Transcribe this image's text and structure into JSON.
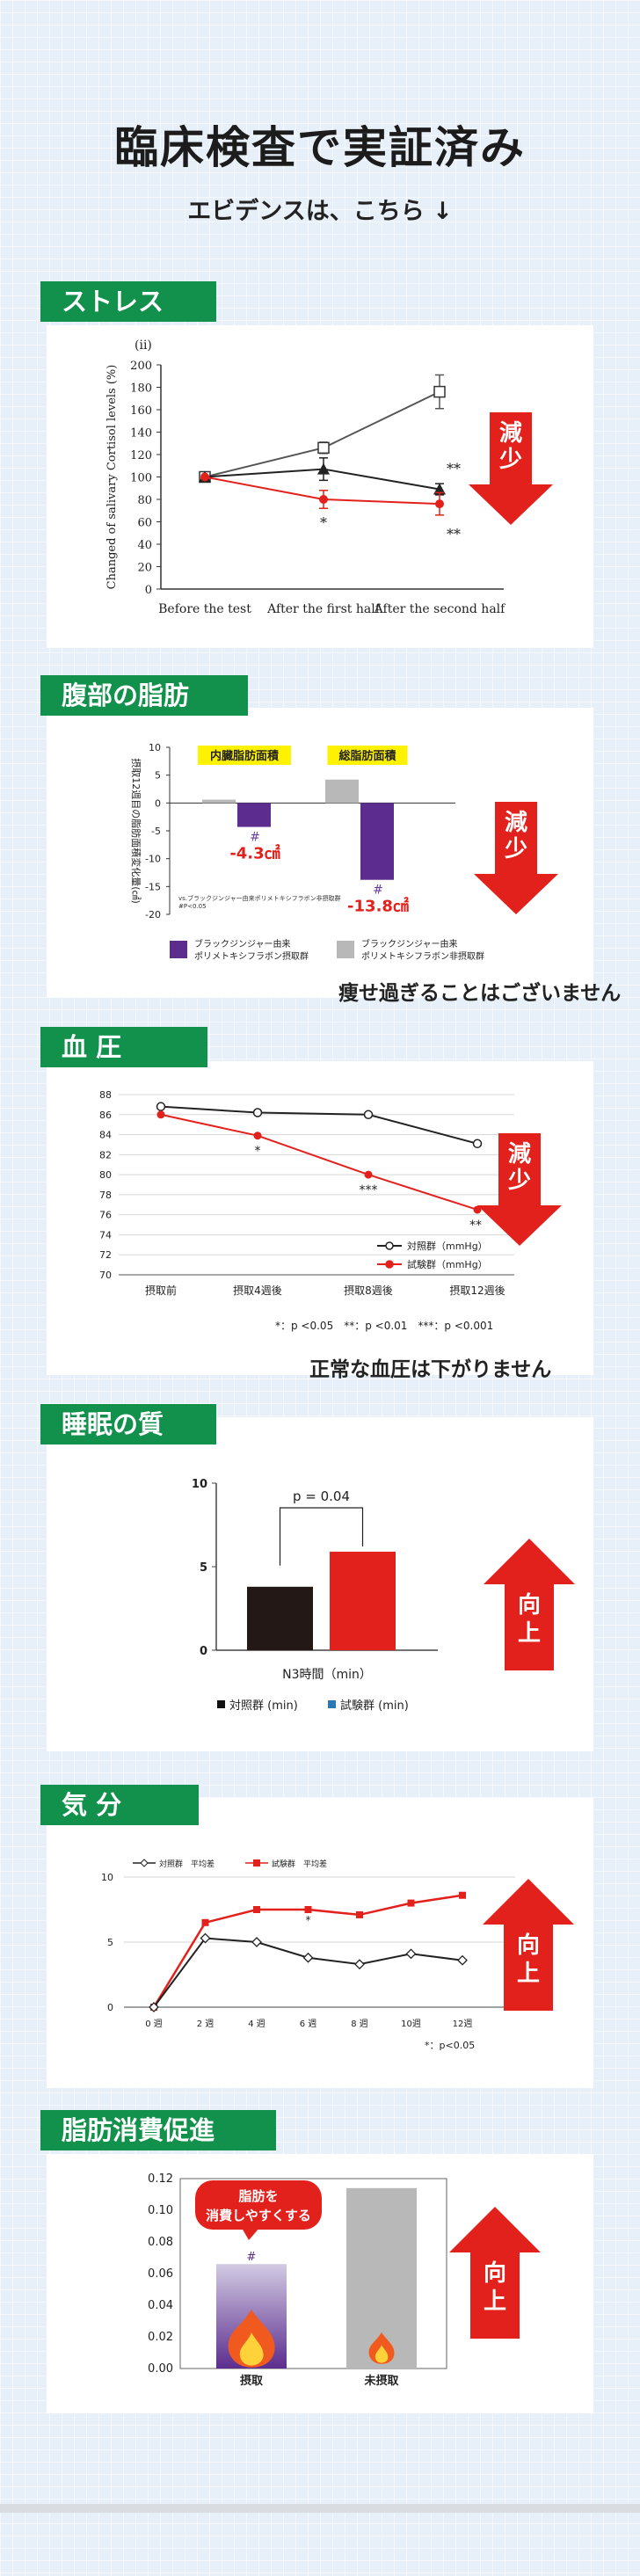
{
  "header": {
    "title": "臨床検査で実証済み",
    "subtitle": "エビデンスは、こちら ↓"
  },
  "sections": {
    "stress": {
      "label": "ストレス",
      "badge": "減少"
    },
    "belly": {
      "label": "腹部の脂肪",
      "badge": "減少",
      "note": "痩せ過ぎることはございません"
    },
    "bp": {
      "label": "血 圧",
      "badge": "減少",
      "note": "正常な血圧は下がりません"
    },
    "sleep": {
      "label": "睡眠の質",
      "badge": "向上"
    },
    "mood": {
      "label": "気 分",
      "badge": "向上"
    },
    "fat": {
      "label": "脂肪消費促進",
      "badge": "向上"
    }
  },
  "colors": {
    "green": "#11914b",
    "red": "#e3211c",
    "purple": "#5c2d8e",
    "gray": "#b8b8b8",
    "black": "#231815"
  },
  "chart_data": [
    {
      "id": "stress",
      "type": "line",
      "panel_label": "(ii)",
      "ylabel": "Changed of salivary Cortisol levels (%)",
      "categories": [
        "Before the test",
        "After the first half",
        "After the second half"
      ],
      "yticks": [
        0,
        20,
        40,
        60,
        80,
        100,
        120,
        140,
        160,
        180,
        200
      ],
      "ylim": [
        0,
        200
      ],
      "series": [
        {
          "marker": "open-square",
          "values": [
            100,
            126,
            176
          ],
          "errors": [
            0,
            5,
            15
          ]
        },
        {
          "marker": "triangle",
          "values": [
            100,
            107,
            89
          ],
          "errors": [
            0,
            10,
            5
          ]
        },
        {
          "marker": "red-circle",
          "values": [
            100,
            80,
            76
          ],
          "errors": [
            0,
            8,
            10
          ]
        }
      ],
      "annotations": [
        {
          "text": "*",
          "x": "After the first half"
        },
        {
          "text": "**",
          "x": "After the second half",
          "pos": "above"
        },
        {
          "text": "**",
          "x": "After the second half",
          "pos": "below"
        }
      ]
    },
    {
      "id": "belly",
      "type": "bar",
      "ylabel": "摂取12週目の脂肪面積変化量(㎠)",
      "groups": [
        "内臓脂肪面積",
        "総脂肪面積"
      ],
      "yticks": [
        10,
        5,
        0,
        -5,
        -10,
        -15,
        -20
      ],
      "ylim": [
        -20,
        10
      ],
      "series": [
        {
          "name": "ブラックジンジャー由来\nポリメトキシフラボン非摂取群",
          "values": [
            0.6,
            4.2
          ]
        },
        {
          "name": "ブラックジンジャー由来\nポリメトキシフラボン摂取群",
          "values": [
            -4.3,
            -13.8
          ]
        }
      ],
      "value_labels": [
        "-4.3㎠",
        "-13.8㎠"
      ],
      "annotations": [
        "#",
        "#"
      ],
      "footnote_1": "vs.ブラックジンジャー由来ポリメトキシフラボン非摂取群",
      "footnote_2": "#P<0.05"
    },
    {
      "id": "bp",
      "type": "line",
      "categories": [
        "摂取前",
        "摂取4週後",
        "摂取8週後",
        "摂取12週後"
      ],
      "yticks": [
        70,
        72,
        74,
        76,
        78,
        80,
        82,
        84,
        86,
        88
      ],
      "ylim": [
        70,
        88
      ],
      "series": [
        {
          "name": "対照群（mmHg）",
          "values": [
            86.8,
            86.2,
            86.0,
            83.1
          ]
        },
        {
          "name": "試験群（mmHg）",
          "values": [
            86.0,
            83.9,
            80.0,
            76.5
          ]
        }
      ],
      "annotations": [
        "*",
        "***",
        "**"
      ],
      "footnote": "*：p <0.05　**：p <0.01　***：p <0.001"
    },
    {
      "id": "sleep",
      "type": "bar",
      "xlabel": "N3時間（min）",
      "yticks": [
        0,
        5,
        10
      ],
      "ylim": [
        0,
        10
      ],
      "series": [
        {
          "name": "対照群 (min)",
          "values": [
            3.8
          ]
        },
        {
          "name": "試験群 (min)",
          "values": [
            5.9
          ]
        }
      ],
      "pvalue": "p = 0.04"
    },
    {
      "id": "mood",
      "type": "line",
      "categories": [
        "0 週",
        "2 週",
        "4 週",
        "6 週",
        "8 週",
        "10週",
        "12週"
      ],
      "yticks": [
        0,
        5,
        10
      ],
      "ylim": [
        0,
        10
      ],
      "series": [
        {
          "name": "対照群　平均差",
          "values": [
            0,
            5.3,
            5.0,
            3.8,
            3.3,
            4.1,
            3.6
          ]
        },
        {
          "name": "試験群　平均差",
          "values": [
            0,
            6.5,
            7.5,
            7.5,
            7.1,
            8.0,
            8.6
          ]
        }
      ],
      "annotations": [
        "*"
      ],
      "footnote": "*：p<0.05"
    },
    {
      "id": "fat",
      "type": "bar",
      "categories": [
        "摂取",
        "未摂取"
      ],
      "yticks": [
        0.0,
        0.02,
        0.04,
        0.06,
        0.08,
        0.1,
        0.12
      ],
      "ylim": [
        0,
        0.12
      ],
      "values": [
        0.066,
        0.114
      ],
      "annotations": [
        "#"
      ],
      "callout": "脂肪を\n消費しやすくする"
    }
  ]
}
